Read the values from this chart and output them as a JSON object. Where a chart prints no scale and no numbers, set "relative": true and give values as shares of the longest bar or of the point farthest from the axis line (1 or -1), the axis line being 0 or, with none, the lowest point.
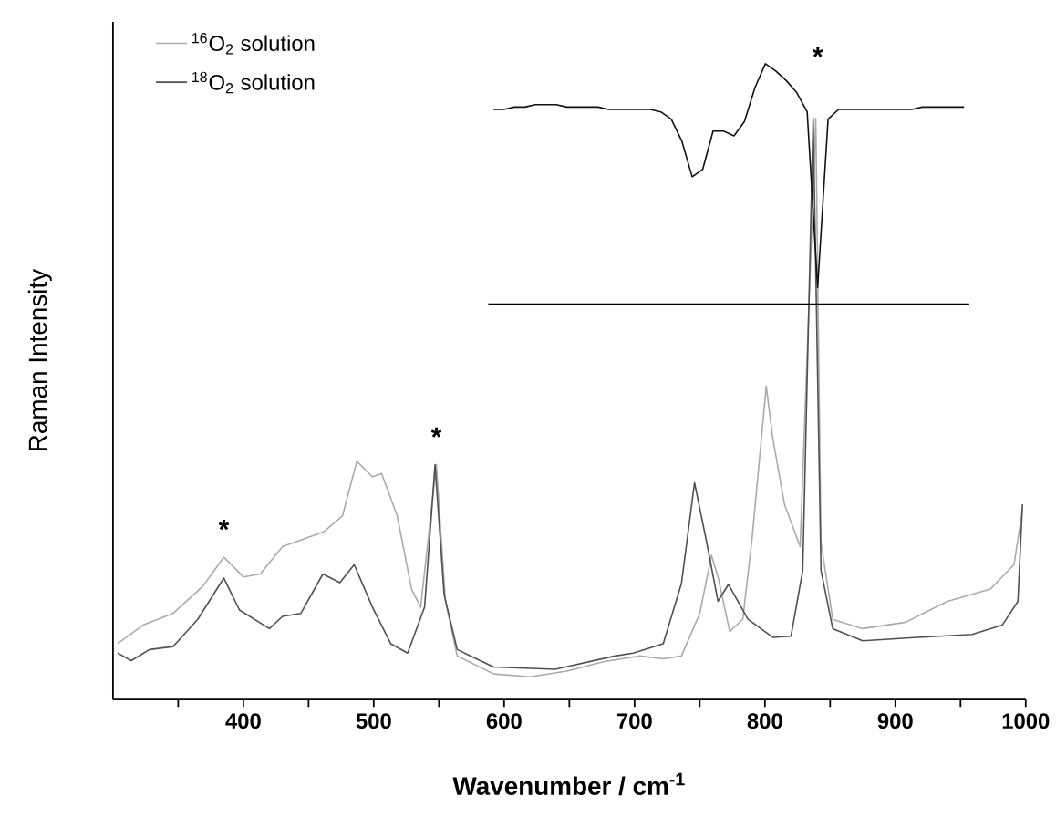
{
  "chart_data": [
    {
      "type": "line",
      "xlabel": "**Wavenumber / cm$^{-1}$**",
      "ylabel": "Raman Intensity",
      "xlim": [
        300,
        1000
      ],
      "xticks": [
        {
          "value": 350,
          "label": null
        },
        400,
        {
          "value": 450,
          "label": null
        },
        500,
        {
          "value": 550,
          "label": null
        },
        600,
        {
          "value": 650,
          "label": null
        },
        700,
        {
          "value": 750,
          "label": null
        },
        800,
        {
          "value": 850,
          "label": null
        },
        900,
        {
          "value": 950,
          "label": null
        },
        1000
      ],
      "relative": true,
      "tick_labels": "x",
      "legend": "top left",
      "annotations": [
        {
          "text": "*",
          "x": 385,
          "y": 0.245
        },
        {
          "text": "*",
          "x": 548,
          "y": 0.404
        }
      ],
      "series": [
        {
          "name": "$^{16}$O$_{2}$ solution",
          "color": "#aaaaaa",
          "x": [
            303.5,
            323,
            346,
            369,
            385,
            400,
            413,
            430,
            462,
            476,
            487,
            499,
            506,
            518,
            529,
            536,
            548,
            555,
            564,
            592,
            620,
            648,
            676,
            704,
            722,
            736,
            750,
            759,
            764,
            773,
            783,
            790,
            801,
            806,
            815,
            827,
            839,
            843,
            852,
            875,
            908,
            940,
            973,
            991,
            997.5
          ],
          "values": [
            0.096,
            0.128,
            0.148,
            0.195,
            0.245,
            0.211,
            0.216,
            0.263,
            0.289,
            0.316,
            0.41,
            0.383,
            0.389,
            0.316,
            0.19,
            0.159,
            0.404,
            0.169,
            0.075,
            0.044,
            0.039,
            0.049,
            0.065,
            0.075,
            0.07,
            0.075,
            0.148,
            0.248,
            0.211,
            0.117,
            0.138,
            0.274,
            0.539,
            0.45,
            0.336,
            0.263,
            1.0,
            0.27,
            0.138,
            0.122,
            0.133,
            0.169,
            0.19,
            0.232,
            0.326
          ]
        },
        {
          "name": "$^{18}$O$_{2}$ solution",
          "color": "#505050",
          "x": [
            303.5,
            314,
            328,
            346,
            365,
            385,
            397,
            420,
            430,
            444,
            461,
            474,
            485,
            499,
            513,
            526,
            539,
            547,
            554,
            564,
            592,
            639,
            685,
            699,
            722,
            736,
            746,
            755,
            764,
            772,
            787,
            806,
            820,
            829,
            837,
            843,
            852,
            875,
            917,
            959,
            982,
            994,
            997.5
          ],
          "values": [
            0.08,
            0.067,
            0.086,
            0.091,
            0.138,
            0.209,
            0.154,
            0.122,
            0.143,
            0.148,
            0.216,
            0.201,
            0.232,
            0.159,
            0.096,
            0.08,
            0.159,
            0.404,
            0.18,
            0.086,
            0.056,
            0.052,
            0.075,
            0.08,
            0.096,
            0.2,
            0.373,
            0.274,
            0.169,
            0.198,
            0.138,
            0.107,
            0.109,
            0.222,
            1.0,
            0.222,
            0.122,
            0.101,
            0.107,
            0.112,
            0.128,
            0.169,
            0.336
          ]
        }
      ]
    },
    {
      "type": "line",
      "relative": true,
      "categories": [
        null,
        null,
        null,
        null,
        null,
        null,
        null,
        null,
        null,
        null,
        null,
        null,
        null,
        null,
        null,
        null,
        null,
        null,
        null,
        null,
        null,
        null,
        null,
        null,
        null,
        null,
        null,
        null,
        null,
        null,
        null,
        null,
        null,
        null,
        null,
        null,
        null,
        null,
        null,
        null,
        null,
        null,
        null,
        null,
        null,
        null
      ],
      "annotations": [
        "*"
      ],
      "series": [
        {
          "color": "#111111",
          "values": [
            0.81,
            0.81,
            0.82,
            0.82,
            0.83,
            0.83,
            0.83,
            0.82,
            0.82,
            0.82,
            0.82,
            0.81,
            0.81,
            0.81,
            0.81,
            0.81,
            0.8,
            0.77,
            0.68,
            0.53,
            0.56,
            0.72,
            0.72,
            0.7,
            0.76,
            0.9,
            1.0,
            0.97,
            0.93,
            0.88,
            0.8,
            0.07,
            0.77,
            0.81,
            0.81,
            0.81,
            0.81,
            0.81,
            0.81,
            0.81,
            0.81,
            0.82,
            0.82,
            0.82,
            0.82,
            0.82
          ]
        }
      ]
    }
  ]
}
